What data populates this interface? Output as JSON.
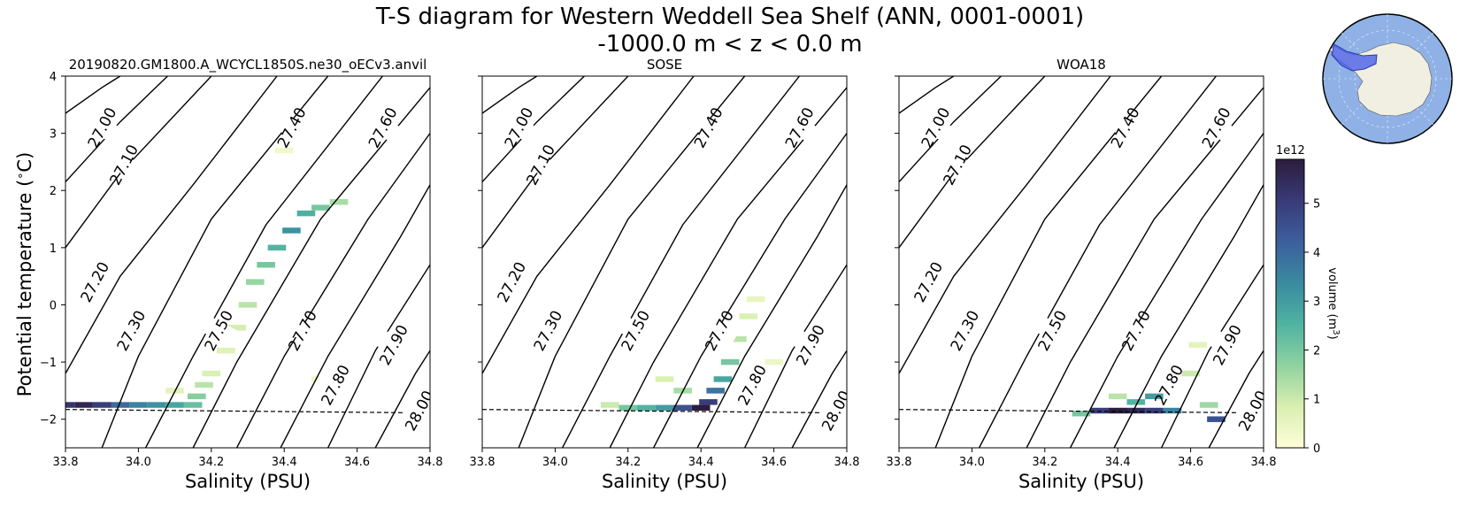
{
  "title_line1": "T-S diagram for Western Weddell Sea Shelf (ANN, 0001-0001)",
  "title_line2": "-1000.0 m < z < 0.0 m",
  "colors": {
    "contour": "#000000",
    "freezing_line": "#000000",
    "map_ocean": "#8fb1e6",
    "map_land": "#f1efe1",
    "map_region": "#4a5fe8",
    "colormap": [
      "#fefed8",
      "#d9efb1",
      "#8fd29f",
      "#4fb3a2",
      "#3a8aa0",
      "#3c5f9d",
      "#3a3a78",
      "#2b1d3c"
    ]
  },
  "colorbar": {
    "label": "volume (m$^3$)",
    "label_main": "volume (m",
    "label_sup": "3",
    "label_end": ")",
    "scale_label": "1e12",
    "ticks": [
      0,
      1,
      2,
      3,
      4,
      5
    ],
    "tick_labels": [
      "0",
      "1",
      "2",
      "3",
      "4",
      "5"
    ],
    "range": [
      0,
      5.9
    ]
  },
  "chart_data": [
    {
      "type": "heatmap",
      "title": "20190820.GM1800.A_WCYCL1850S.ne30_oECv3.anvil",
      "xlabel": "Salinity (PSU)",
      "ylabel": "Potential temperature ($^\\circ$C)",
      "ylabel_main": "Potential temperature (",
      "ylabel_sup": "∘",
      "ylabel_end": "C)",
      "xlim": [
        33.8,
        34.8
      ],
      "ylim": [
        -2.5,
        4
      ],
      "xticks": [
        "33.8",
        "34.0",
        "34.2",
        "34.4",
        "34.6",
        "34.8"
      ],
      "yticks": [
        "4",
        "3",
        "2",
        "1",
        "0",
        "−1",
        "−2"
      ],
      "freezing_line": {
        "x": [
          33.8,
          34.8
        ],
        "y": [
          -1.83,
          -1.89
        ]
      },
      "contour_labels": [
        {
          "text": "27.00",
          "s": 33.9,
          "t": 3.1
        },
        {
          "text": "27.10",
          "s": 33.96,
          "t": 2.45
        },
        {
          "text": "27.20",
          "s": 33.88,
          "t": 0.4
        },
        {
          "text": "27.30",
          "s": 33.98,
          "t": -0.45
        },
        {
          "text": "27.40",
          "s": 34.42,
          "t": 3.1
        },
        {
          "text": "27.50",
          "s": 34.22,
          "t": -0.45
        },
        {
          "text": "27.60",
          "s": 34.67,
          "t": 3.1
        },
        {
          "text": "27.70",
          "s": 34.45,
          "t": -0.45
        },
        {
          "text": "27.80",
          "s": 34.54,
          "t": -1.4
        },
        {
          "text": "27.90",
          "s": 34.7,
          "t": -0.7
        },
        {
          "text": "28.00",
          "s": 34.77,
          "t": -1.85
        }
      ],
      "bins": [
        {
          "s": 33.8,
          "t": -1.75,
          "v": 5.2
        },
        {
          "s": 33.85,
          "t": -1.75,
          "v": 5.6
        },
        {
          "s": 33.9,
          "t": -1.75,
          "v": 5.0
        },
        {
          "s": 33.95,
          "t": -1.75,
          "v": 4.0
        },
        {
          "s": 34.0,
          "t": -1.75,
          "v": 3.5
        },
        {
          "s": 34.05,
          "t": -1.75,
          "v": 3.2
        },
        {
          "s": 34.1,
          "t": -1.75,
          "v": 2.8
        },
        {
          "s": 34.15,
          "t": -1.75,
          "v": 2.2
        },
        {
          "s": 34.16,
          "t": -1.6,
          "v": 1.8
        },
        {
          "s": 34.18,
          "t": -1.4,
          "v": 1.2
        },
        {
          "s": 34.2,
          "t": -1.2,
          "v": 0.8
        },
        {
          "s": 34.24,
          "t": -0.8,
          "v": 0.7
        },
        {
          "s": 34.27,
          "t": -0.4,
          "v": 0.9
        },
        {
          "s": 34.3,
          "t": 0.0,
          "v": 1.2
        },
        {
          "s": 34.32,
          "t": 0.4,
          "v": 1.6
        },
        {
          "s": 34.35,
          "t": 0.7,
          "v": 2.0
        },
        {
          "s": 34.38,
          "t": 1.0,
          "v": 2.5
        },
        {
          "s": 34.42,
          "t": 1.3,
          "v": 3.2
        },
        {
          "s": 34.46,
          "t": 1.6,
          "v": 2.6
        },
        {
          "s": 34.5,
          "t": 1.7,
          "v": 2.0
        },
        {
          "s": 34.55,
          "t": 1.8,
          "v": 1.4
        },
        {
          "s": 34.5,
          "t": -1.3,
          "v": 0.4
        },
        {
          "s": 34.4,
          "t": 2.7,
          "v": 0.3
        },
        {
          "s": 34.1,
          "t": -1.5,
          "v": 0.6
        }
      ]
    },
    {
      "type": "heatmap",
      "title": "SOSE",
      "xlabel": "Salinity (PSU)",
      "xlim": [
        33.8,
        34.8
      ],
      "ylim": [
        -2.5,
        4
      ],
      "xticks": [
        "33.8",
        "34.0",
        "34.2",
        "34.4",
        "34.6",
        "34.8"
      ],
      "freezing_line": {
        "x": [
          33.8,
          34.8
        ],
        "y": [
          -1.83,
          -1.89
        ]
      },
      "contour_labels": [
        {
          "text": "27.00",
          "s": 33.9,
          "t": 3.1
        },
        {
          "text": "27.10",
          "s": 33.96,
          "t": 2.45
        },
        {
          "text": "27.20",
          "s": 33.88,
          "t": 0.4
        },
        {
          "text": "27.30",
          "s": 33.98,
          "t": -0.45
        },
        {
          "text": "27.40",
          "s": 34.42,
          "t": 3.1
        },
        {
          "text": "27.50",
          "s": 34.22,
          "t": -0.45
        },
        {
          "text": "27.60",
          "s": 34.67,
          "t": 3.1
        },
        {
          "text": "27.70",
          "s": 34.45,
          "t": -0.45
        },
        {
          "text": "27.80",
          "s": 34.54,
          "t": -1.4
        },
        {
          "text": "27.90",
          "s": 34.7,
          "t": -0.7
        },
        {
          "text": "28.00",
          "s": 34.77,
          "t": -1.85
        }
      ],
      "bins": [
        {
          "s": 34.2,
          "t": -1.8,
          "v": 2.0
        },
        {
          "s": 34.25,
          "t": -1.8,
          "v": 2.5
        },
        {
          "s": 34.3,
          "t": -1.8,
          "v": 3.0
        },
        {
          "s": 34.35,
          "t": -1.8,
          "v": 4.5
        },
        {
          "s": 34.4,
          "t": -1.8,
          "v": 5.9
        },
        {
          "s": 34.42,
          "t": -1.7,
          "v": 5.0
        },
        {
          "s": 34.44,
          "t": -1.5,
          "v": 3.8
        },
        {
          "s": 34.46,
          "t": -1.3,
          "v": 2.8
        },
        {
          "s": 34.48,
          "t": -1.0,
          "v": 2.0
        },
        {
          "s": 34.5,
          "t": -0.6,
          "v": 1.2
        },
        {
          "s": 34.53,
          "t": -0.2,
          "v": 0.8
        },
        {
          "s": 34.55,
          "t": 0.1,
          "v": 0.5
        },
        {
          "s": 34.35,
          "t": -1.5,
          "v": 1.4
        },
        {
          "s": 34.3,
          "t": -1.3,
          "v": 0.8
        },
        {
          "s": 34.6,
          "t": -1.0,
          "v": 0.4
        },
        {
          "s": 34.15,
          "t": -1.75,
          "v": 1.0
        }
      ]
    },
    {
      "type": "heatmap",
      "title": "WOA18",
      "xlabel": "Salinity (PSU)",
      "xlim": [
        33.8,
        34.8
      ],
      "ylim": [
        -2.5,
        4
      ],
      "xticks": [
        "33.8",
        "34.0",
        "34.2",
        "34.4",
        "34.6",
        "34.8"
      ],
      "freezing_line": {
        "x": [
          33.8,
          34.8
        ],
        "y": [
          -1.83,
          -1.89
        ]
      },
      "contour_labels": [
        {
          "text": "27.00",
          "s": 33.9,
          "t": 3.1
        },
        {
          "text": "27.10",
          "s": 33.96,
          "t": 2.45
        },
        {
          "text": "27.20",
          "s": 33.88,
          "t": 0.4
        },
        {
          "text": "27.30",
          "s": 33.98,
          "t": -0.45
        },
        {
          "text": "27.40",
          "s": 34.42,
          "t": 3.1
        },
        {
          "text": "27.50",
          "s": 34.22,
          "t": -0.45
        },
        {
          "text": "27.60",
          "s": 34.67,
          "t": 3.1
        },
        {
          "text": "27.70",
          "s": 34.45,
          "t": -0.45
        },
        {
          "text": "27.80",
          "s": 34.54,
          "t": -1.4
        },
        {
          "text": "27.90",
          "s": 34.7,
          "t": -0.7
        },
        {
          "text": "28.00",
          "s": 34.77,
          "t": -1.85
        }
      ],
      "bins": [
        {
          "s": 34.35,
          "t": -1.85,
          "v": 5.0
        },
        {
          "s": 34.4,
          "t": -1.85,
          "v": 5.9
        },
        {
          "s": 34.45,
          "t": -1.85,
          "v": 5.5
        },
        {
          "s": 34.5,
          "t": -1.85,
          "v": 5.0
        },
        {
          "s": 34.55,
          "t": -1.85,
          "v": 3.5
        },
        {
          "s": 34.5,
          "t": -1.6,
          "v": 3.0
        },
        {
          "s": 34.45,
          "t": -1.7,
          "v": 2.5
        },
        {
          "s": 34.55,
          "t": -1.45,
          "v": 2.0
        },
        {
          "s": 34.6,
          "t": -1.2,
          "v": 1.0
        },
        {
          "s": 34.67,
          "t": -2.0,
          "v": 4.5
        },
        {
          "s": 34.3,
          "t": -1.9,
          "v": 2.0
        },
        {
          "s": 34.62,
          "t": -0.7,
          "v": 0.6
        },
        {
          "s": 34.4,
          "t": -1.6,
          "v": 1.2
        },
        {
          "s": 34.65,
          "t": -1.75,
          "v": 1.5
        }
      ]
    }
  ]
}
